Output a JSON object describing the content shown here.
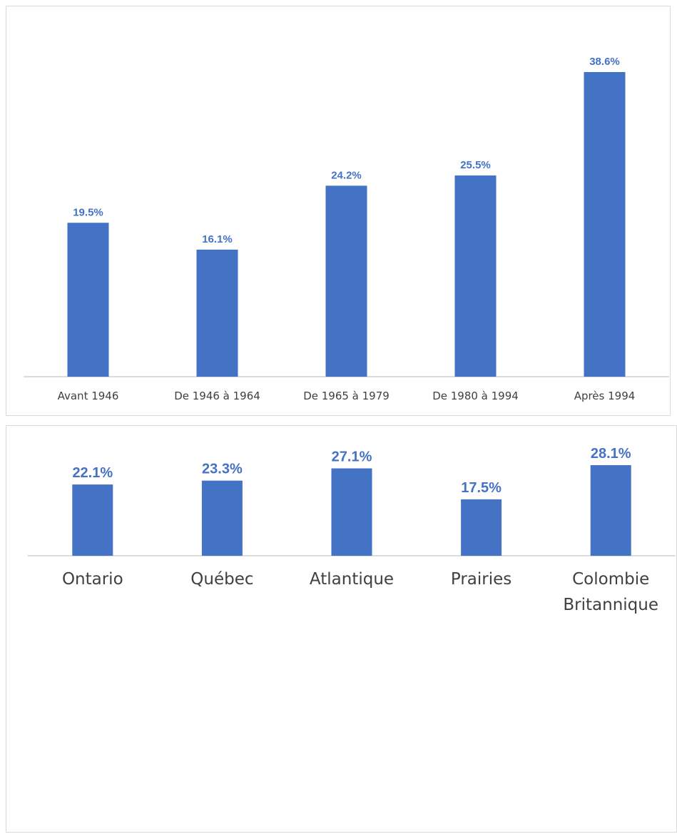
{
  "colors": {
    "bar": "#4472c4",
    "label": "#4472c4",
    "axis": "#d0d0d0",
    "tick_text": "#404040"
  },
  "chart_data": [
    {
      "type": "bar",
      "categories": [
        "Avant 1946",
        "De 1946 à 1964",
        "De 1965 à 1979",
        "De 1980 à 1994",
        "Après 1994"
      ],
      "values": [
        19.5,
        16.1,
        24.2,
        25.5,
        38.6
      ],
      "value_labels": [
        "19.5%",
        "16.1%",
        "24.2%",
        "25.5%",
        "38.6%"
      ],
      "unit": "%",
      "ylim": [
        0,
        42
      ],
      "grid": false,
      "legend": "none"
    },
    {
      "type": "bar",
      "categories": [
        "Ontario",
        "Québec",
        "Atlantique",
        "Prairies",
        "Colombie\nBritannique"
      ],
      "values": [
        22.1,
        23.3,
        27.1,
        17.5,
        28.1
      ],
      "value_labels": [
        "22.1%",
        "23.3%",
        "27.1%",
        "17.5%",
        "28.1%"
      ],
      "unit": "%",
      "ylim": [
        0,
        33
      ],
      "grid": false,
      "legend": "none"
    }
  ]
}
